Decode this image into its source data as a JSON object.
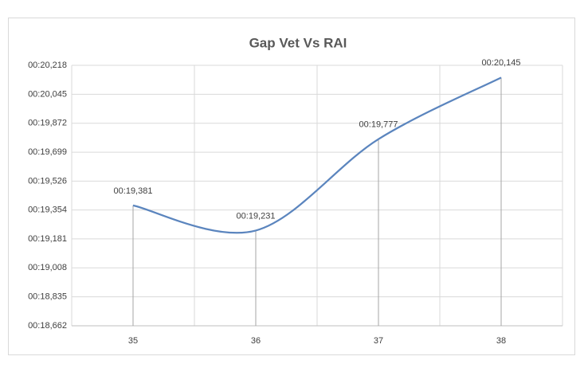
{
  "chart_data": {
    "type": "line",
    "title": "Gap Vet Vs RAI",
    "categories": [
      "35",
      "36",
      "37",
      "38"
    ],
    "values": [
      19.381,
      19.231,
      19.777,
      20.145
    ],
    "value_labels": [
      "00:19,381",
      "00:19,231",
      "00:19,777",
      "00:20,145"
    ],
    "color": "#5b85be",
    "smooth": true,
    "drop_lines": true,
    "grid": true,
    "ylim": [
      18.662,
      20.218
    ],
    "yticks": [
      {
        "value": 18.662,
        "label": "00:18,662"
      },
      {
        "value": 18.835,
        "label": "00:18,835"
      },
      {
        "value": 19.008,
        "label": "00:19,008"
      },
      {
        "value": 19.181,
        "label": "00:19,181"
      },
      {
        "value": 19.354,
        "label": "00:19,354"
      },
      {
        "value": 19.526,
        "label": "00:19,526"
      },
      {
        "value": 19.699,
        "label": "00:19,699"
      },
      {
        "value": 19.872,
        "label": "00:19,872"
      },
      {
        "value": 20.045,
        "label": "00:20,045"
      },
      {
        "value": 20.218,
        "label": "00:20,218"
      }
    ]
  }
}
